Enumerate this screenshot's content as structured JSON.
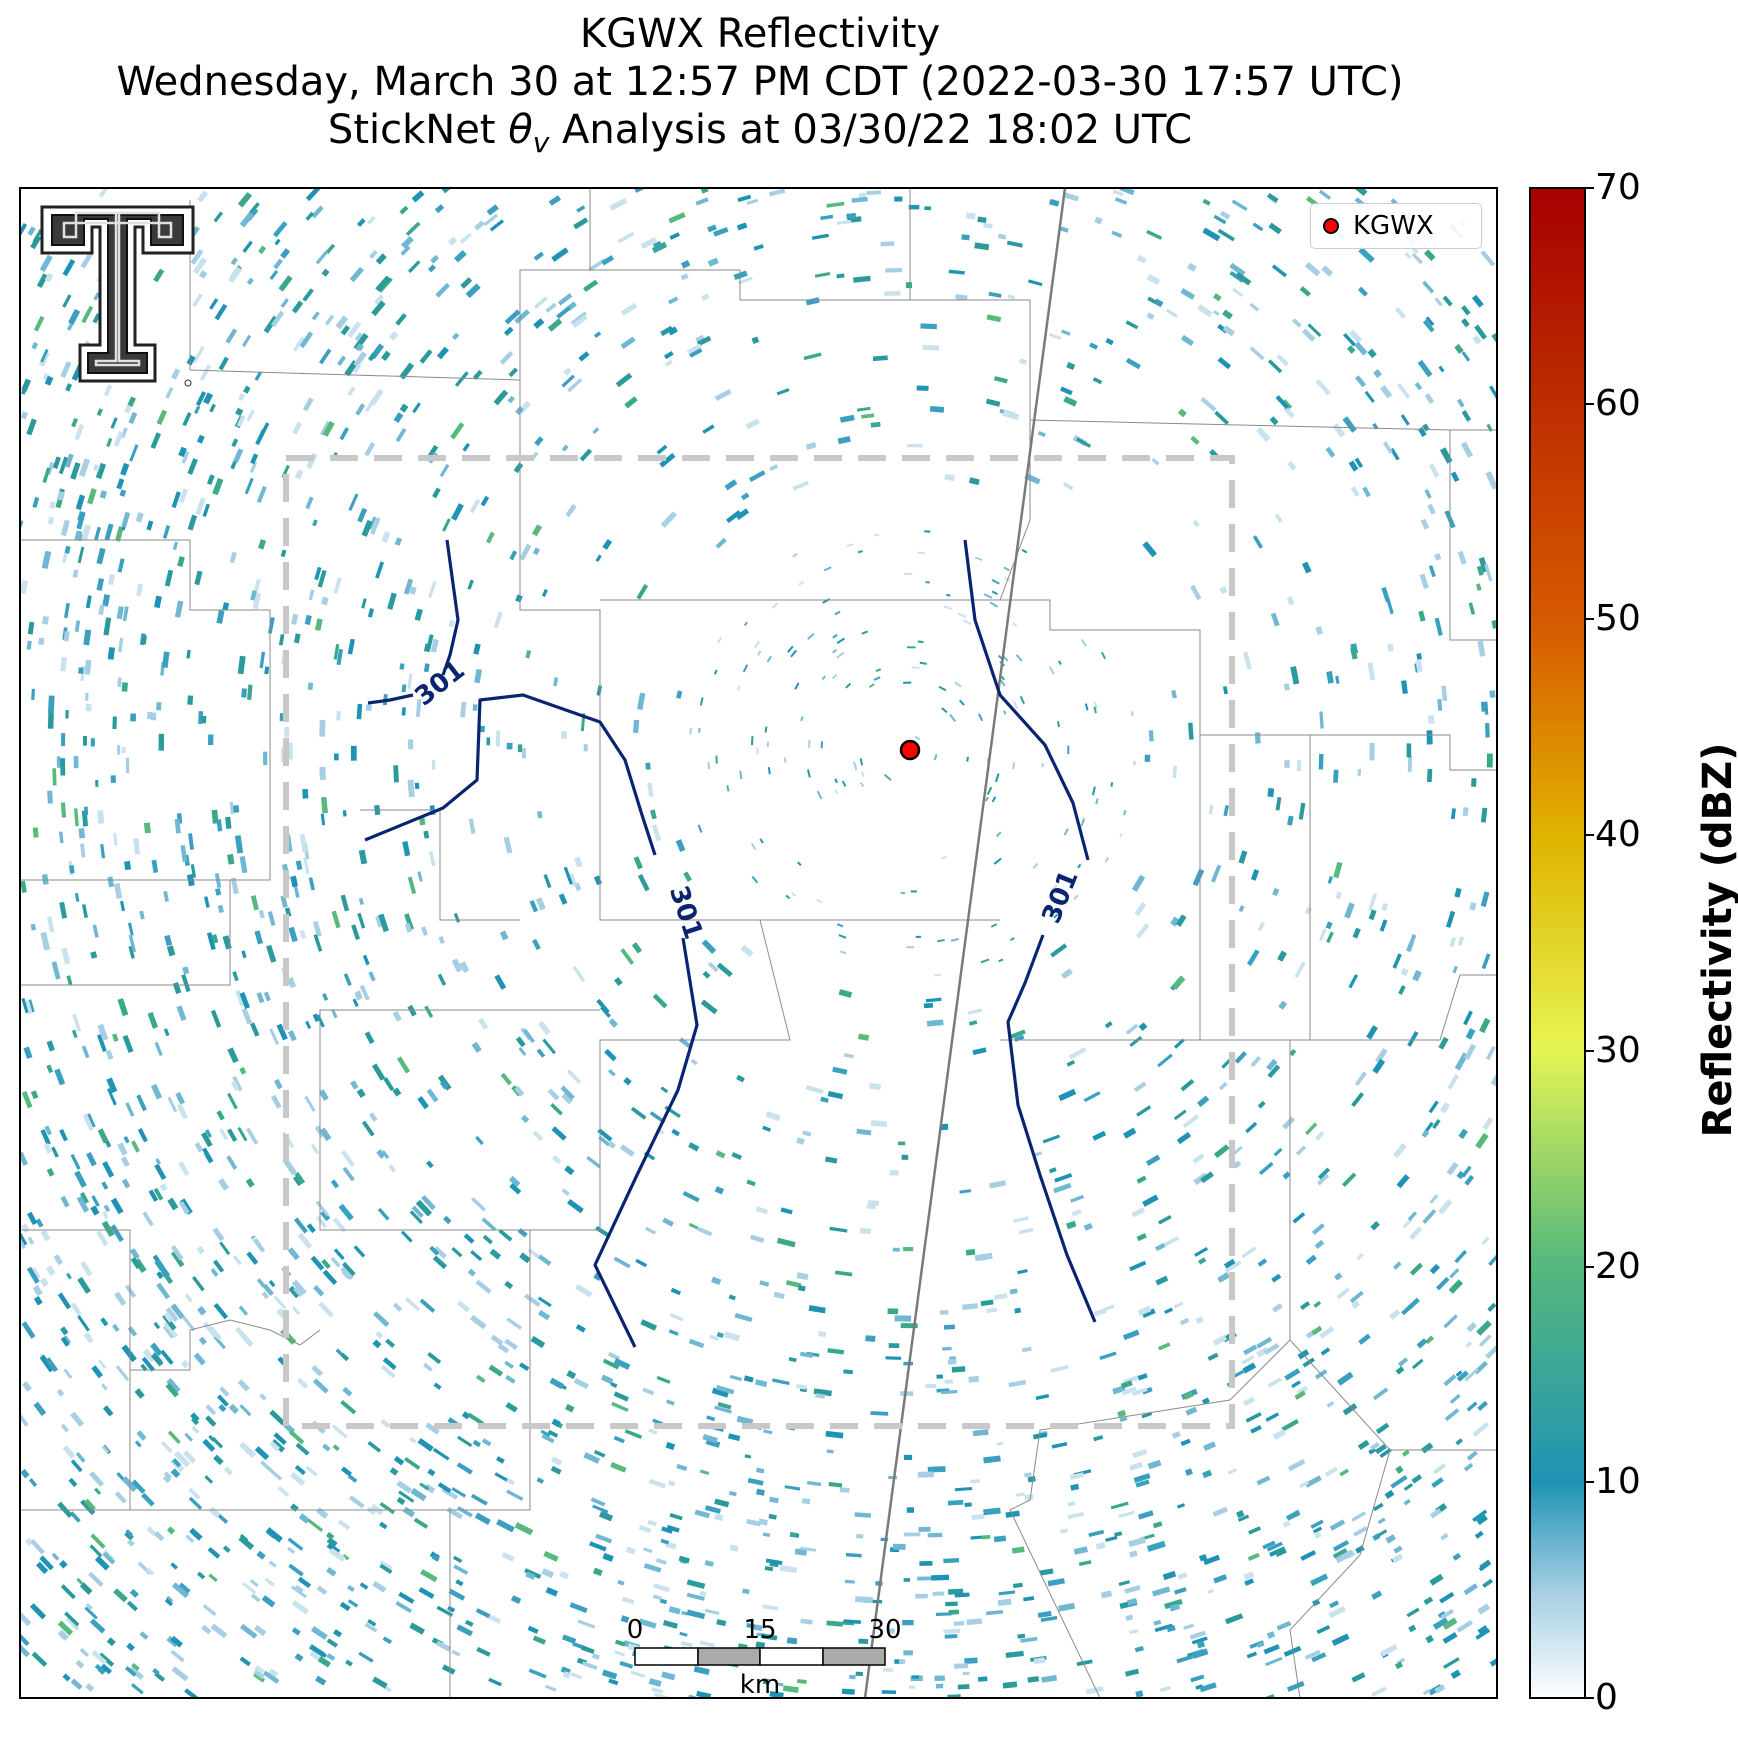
{
  "title": {
    "line1": "KGWX Reflectivity",
    "line2": "Wednesday, March 30 at 12:57 PM CDT (2022-03-30 17:57 UTC)",
    "line3_before": "StickNet ",
    "line3_symbol": "θ",
    "line3_subscript": "v",
    "line3_after": " Analysis at 03/30/22 18:02 UTC"
  },
  "legend": {
    "label": "KGWX",
    "marker_color": "#ff0000"
  },
  "contours": {
    "level_label": "301",
    "color": "#0a2472"
  },
  "analysis_box": {
    "color": "#c8c8c8",
    "style": "dashed"
  },
  "scalebar": {
    "unit": "km",
    "labels": [
      "0",
      "15",
      "30"
    ]
  },
  "colorbar": {
    "title": "Reflectivity (dBZ)",
    "min": 0,
    "max": 70,
    "ticks": [
      "0",
      "10",
      "20",
      "30",
      "40",
      "50",
      "60",
      "70"
    ],
    "colors": [
      "#ffffff",
      "#a6cfe3",
      "#1f93b4",
      "#57b97b",
      "#e6f553",
      "#e0b300",
      "#d65b00",
      "#a60000"
    ]
  },
  "radar": {
    "site": "KGWX",
    "marker_color": "#ff0000"
  },
  "logo": {
    "icon": "texas-tech-double-t-logo"
  }
}
